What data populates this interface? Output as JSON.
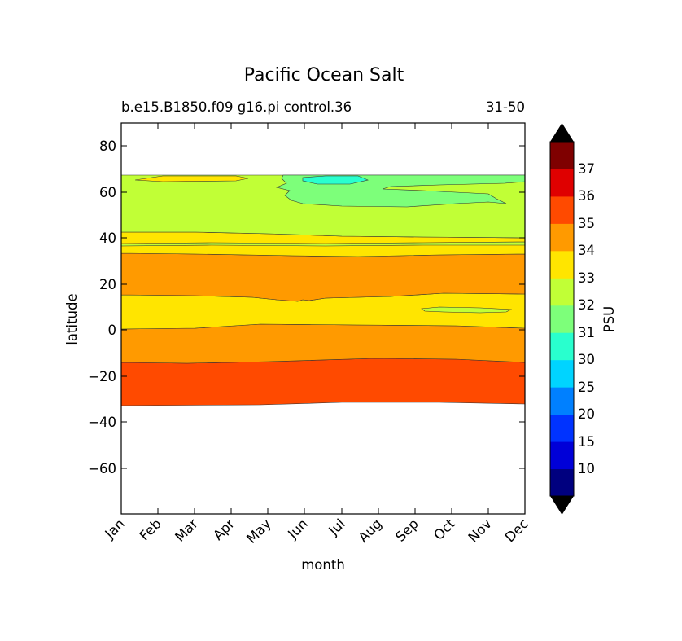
{
  "chart_data": {
    "type": "contour",
    "title": "Pacific Ocean Salt",
    "subtitle_left": "b.e15.B1850.f09 g16.pi control.36",
    "subtitle_right": "31-50",
    "xlabel": "month",
    "ylabel": "latitude",
    "x_ticks": [
      "Jan",
      "Feb",
      "Mar",
      "Apr",
      "May",
      "Jun",
      "Jul",
      "Aug",
      "Sep",
      "Oct",
      "Nov",
      "Dec"
    ],
    "y_ticks": [
      "80",
      "60",
      "40",
      "20",
      "0",
      "−20",
      "−40",
      "−60"
    ],
    "ylim": [
      -80,
      90
    ],
    "colorbar": {
      "label": "PSU",
      "tick_labels": [
        "37",
        "36",
        "35",
        "34",
        "33",
        "32",
        "31",
        "30",
        "25",
        "20",
        "15",
        "10"
      ],
      "levels": [
        10,
        15,
        20,
        25,
        30,
        31,
        32,
        33,
        34,
        35,
        36,
        37
      ],
      "colors": [
        "#00007f",
        "#0000d8",
        "#0033ff",
        "#0080ff",
        "#00d4ff",
        "#29ffce",
        "#7dff7a",
        "#c1ff36",
        "#ffe500",
        "#ff9a00",
        "#ff4a00",
        "#df0000",
        "#7f0000"
      ],
      "extend": "both"
    },
    "bands_description": [
      {
        "range": "35-36",
        "lat_from": -33,
        "lat_to": -13
      },
      {
        "range": "34-35",
        "lat_from": -13,
        "lat_to": 2
      },
      {
        "range": "33-34",
        "lat_from": 2,
        "lat_to": 15
      },
      {
        "range": "34-35",
        "lat_from": 15,
        "lat_to": 33
      },
      {
        "range": "33-34",
        "lat_from": 33,
        "lat_to": 42
      },
      {
        "range": "32-33",
        "lat_from": 42,
        "lat_to": 67
      }
    ]
  }
}
